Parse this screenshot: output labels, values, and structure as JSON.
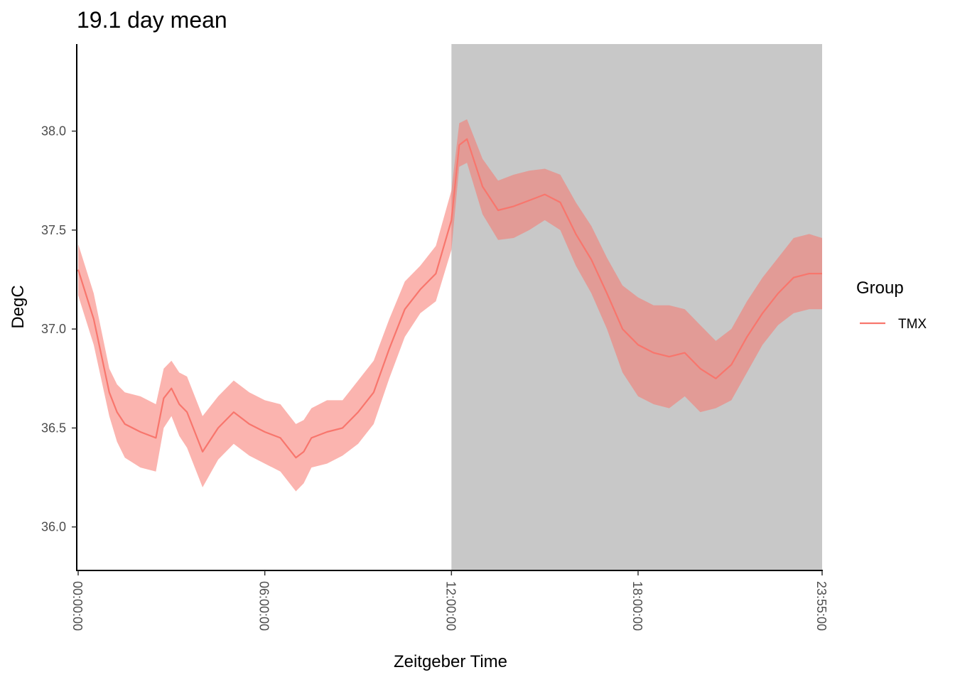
{
  "chart_data": {
    "type": "line",
    "title": "19.1 day mean",
    "xlabel": "Zeitgeber Time",
    "ylabel": "DegC",
    "x_unit": "hours",
    "xlim": [
      0,
      23.9167
    ],
    "ylim": [
      35.78,
      38.44
    ],
    "x_ticks": [
      {
        "value": 0,
        "label": "00:00:00"
      },
      {
        "value": 6,
        "label": "06:00:00"
      },
      {
        "value": 12,
        "label": "12:00:00"
      },
      {
        "value": 18,
        "label": "18:00:00"
      },
      {
        "value": 23.9167,
        "label": "23:55:00"
      }
    ],
    "y_ticks": [
      {
        "value": 36.0,
        "label": "36.0"
      },
      {
        "value": 36.5,
        "label": "36.5"
      },
      {
        "value": 37.0,
        "label": "37.0"
      },
      {
        "value": 37.5,
        "label": "37.5"
      },
      {
        "value": 38.0,
        "label": "38.0"
      }
    ],
    "shaded_region": {
      "x_start": 12,
      "x_end": 23.9167,
      "color": "#c8c8c8",
      "meaning": "dark phase"
    },
    "legend": {
      "title": "Group",
      "position": "right"
    },
    "grid": false,
    "series": [
      {
        "name": "TMX",
        "color": "#f8766d",
        "x": [
          0,
          0.5,
          1,
          1.25,
          1.5,
          2,
          2.5,
          2.75,
          3,
          3.25,
          3.5,
          4,
          4.5,
          5,
          5.5,
          6,
          6.5,
          7,
          7.25,
          7.5,
          8,
          8.5,
          9,
          9.5,
          10,
          10.5,
          11,
          11.5,
          12,
          12.25,
          12.5,
          13,
          13.5,
          14,
          14.5,
          15,
          15.5,
          16,
          16.5,
          17,
          17.5,
          18,
          18.5,
          19,
          19.5,
          20,
          20.5,
          21,
          21.5,
          22,
          22.5,
          23,
          23.5,
          23.9167
        ],
        "mean": [
          37.3,
          37.05,
          36.68,
          36.58,
          36.52,
          36.48,
          36.45,
          36.65,
          36.7,
          36.62,
          36.58,
          36.38,
          36.5,
          36.58,
          36.52,
          36.48,
          36.45,
          36.35,
          36.38,
          36.45,
          36.48,
          36.5,
          36.58,
          36.68,
          36.9,
          37.1,
          37.2,
          37.28,
          37.55,
          37.93,
          37.96,
          37.72,
          37.6,
          37.62,
          37.65,
          37.68,
          37.64,
          37.48,
          37.35,
          37.18,
          37.0,
          36.92,
          36.88,
          36.86,
          36.88,
          36.8,
          36.75,
          36.82,
          36.96,
          37.08,
          37.18,
          37.26,
          37.28,
          37.28
        ],
        "lower": [
          37.17,
          36.92,
          36.56,
          36.43,
          36.35,
          36.3,
          36.28,
          36.5,
          36.56,
          36.46,
          36.4,
          36.2,
          36.34,
          36.42,
          36.36,
          36.32,
          36.28,
          36.18,
          36.22,
          36.3,
          36.32,
          36.36,
          36.42,
          36.52,
          36.75,
          36.96,
          37.08,
          37.14,
          37.4,
          37.82,
          37.84,
          37.58,
          37.45,
          37.46,
          37.5,
          37.55,
          37.5,
          37.32,
          37.18,
          37.0,
          36.78,
          36.66,
          36.62,
          36.6,
          36.66,
          36.58,
          36.6,
          36.64,
          36.78,
          36.92,
          37.02,
          37.08,
          37.1,
          37.1
        ],
        "upper": [
          37.43,
          37.18,
          36.8,
          36.72,
          36.68,
          36.66,
          36.62,
          36.8,
          36.84,
          36.78,
          36.76,
          36.56,
          36.66,
          36.74,
          36.68,
          36.64,
          36.62,
          36.52,
          36.54,
          36.6,
          36.64,
          36.64,
          36.74,
          36.84,
          37.05,
          37.24,
          37.32,
          37.42,
          37.7,
          38.04,
          38.06,
          37.86,
          37.75,
          37.78,
          37.8,
          37.81,
          37.78,
          37.64,
          37.52,
          37.36,
          37.22,
          37.16,
          37.12,
          37.12,
          37.1,
          37.02,
          36.94,
          37.0,
          37.14,
          37.26,
          37.36,
          37.46,
          37.48,
          37.46
        ]
      }
    ]
  }
}
